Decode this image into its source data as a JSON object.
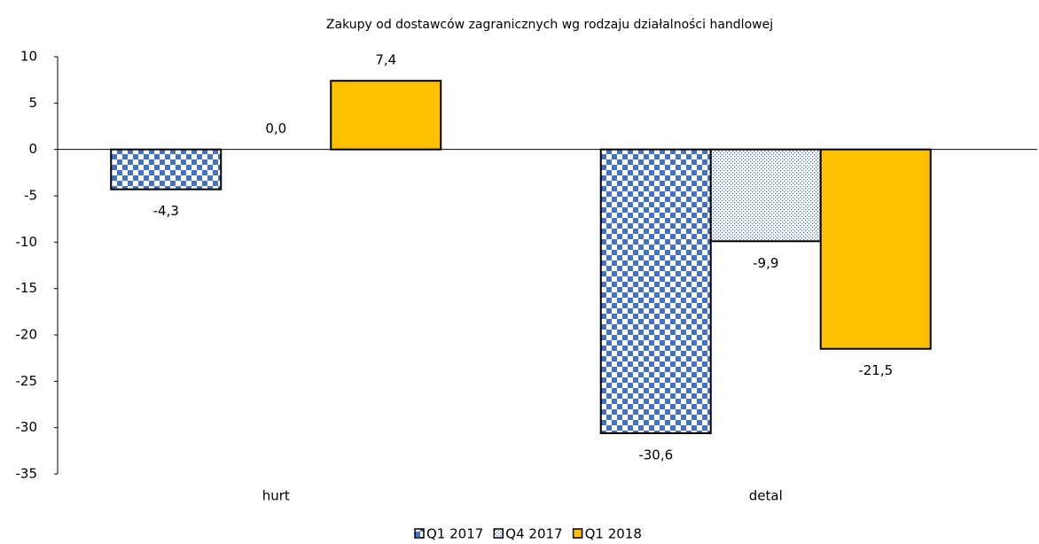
{
  "chart_data": {
    "type": "bar",
    "title": "Zakupy od dostawców zagranicznych wg rodzaju działalności handlowej",
    "categories": [
      "hurt",
      "detal"
    ],
    "series": [
      {
        "name": "Q1 2017",
        "color": "#4472c4",
        "pattern": "checker",
        "values": [
          -4.3,
          -30.6
        ],
        "value_labels": [
          "-4,3",
          "-30,6"
        ]
      },
      {
        "name": "Q4 2017",
        "color": "#4472c4",
        "pattern": "dots",
        "values": [
          0.0,
          -9.9
        ],
        "value_labels": [
          "0,0",
          "-9,9"
        ]
      },
      {
        "name": "Q1 2018",
        "color": "#ffc000",
        "pattern": "solid",
        "values": [
          7.4,
          -21.5
        ],
        "value_labels": [
          "7,4",
          "-21,5"
        ]
      }
    ],
    "ylim": [
      -35,
      10
    ],
    "yticks": [
      10,
      5,
      0,
      -5,
      -10,
      -15,
      -20,
      -25,
      -30,
      -35
    ],
    "grid": false,
    "legend": "bottom"
  }
}
